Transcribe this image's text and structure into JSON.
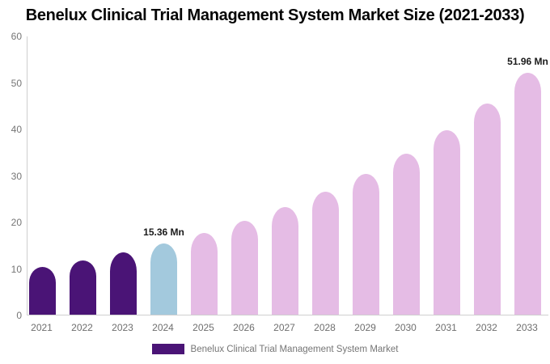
{
  "title": "Benelux Clinical Trial Management System Market Size (2021-2033)",
  "chart_data": {
    "type": "bar",
    "title": "Benelux Clinical Trial Management System Market Size (2021-2033)",
    "categories": [
      "2021",
      "2022",
      "2023",
      "2024",
      "2025",
      "2026",
      "2027",
      "2028",
      "2029",
      "2030",
      "2031",
      "2032",
      "2033"
    ],
    "values": [
      10.2,
      11.7,
      13.4,
      15.36,
      17.6,
      20.1,
      23.1,
      26.4,
      30.2,
      34.6,
      39.7,
      45.4,
      51.96
    ],
    "unit": "Mn",
    "xlabel": "",
    "ylabel": "",
    "ylim": [
      0,
      60
    ],
    "yticks": [
      0,
      10,
      20,
      30,
      40,
      50,
      60
    ],
    "grid": "off",
    "legend_position": "bottom",
    "bar_colors": [
      "#4A1476",
      "#4A1476",
      "#4A1476",
      "#A3C9DD",
      "#E5BCE5",
      "#E5BCE5",
      "#E5BCE5",
      "#E5BCE5",
      "#E5BCE5",
      "#E5BCE5",
      "#E5BCE5",
      "#E5BCE5",
      "#E5BCE5"
    ],
    "annotations": [
      {
        "category": "2024",
        "label": "15.36 Mn"
      },
      {
        "category": "2033",
        "label": "51.96 Mn"
      }
    ]
  },
  "legend": {
    "swatch_color": "#4A1476",
    "label": "Benelux Clinical Trial Management System Market"
  },
  "colors": {
    "historical_bar": "#4A1476",
    "current_bar": "#A3C9DD",
    "forecast_bar": "#E5BCE5",
    "axis_line": "#cfcfcf",
    "tick_text": "#757575",
    "title_text": "#050505",
    "annotation_text": "#1a1a1a",
    "background": "#ffffff"
  }
}
